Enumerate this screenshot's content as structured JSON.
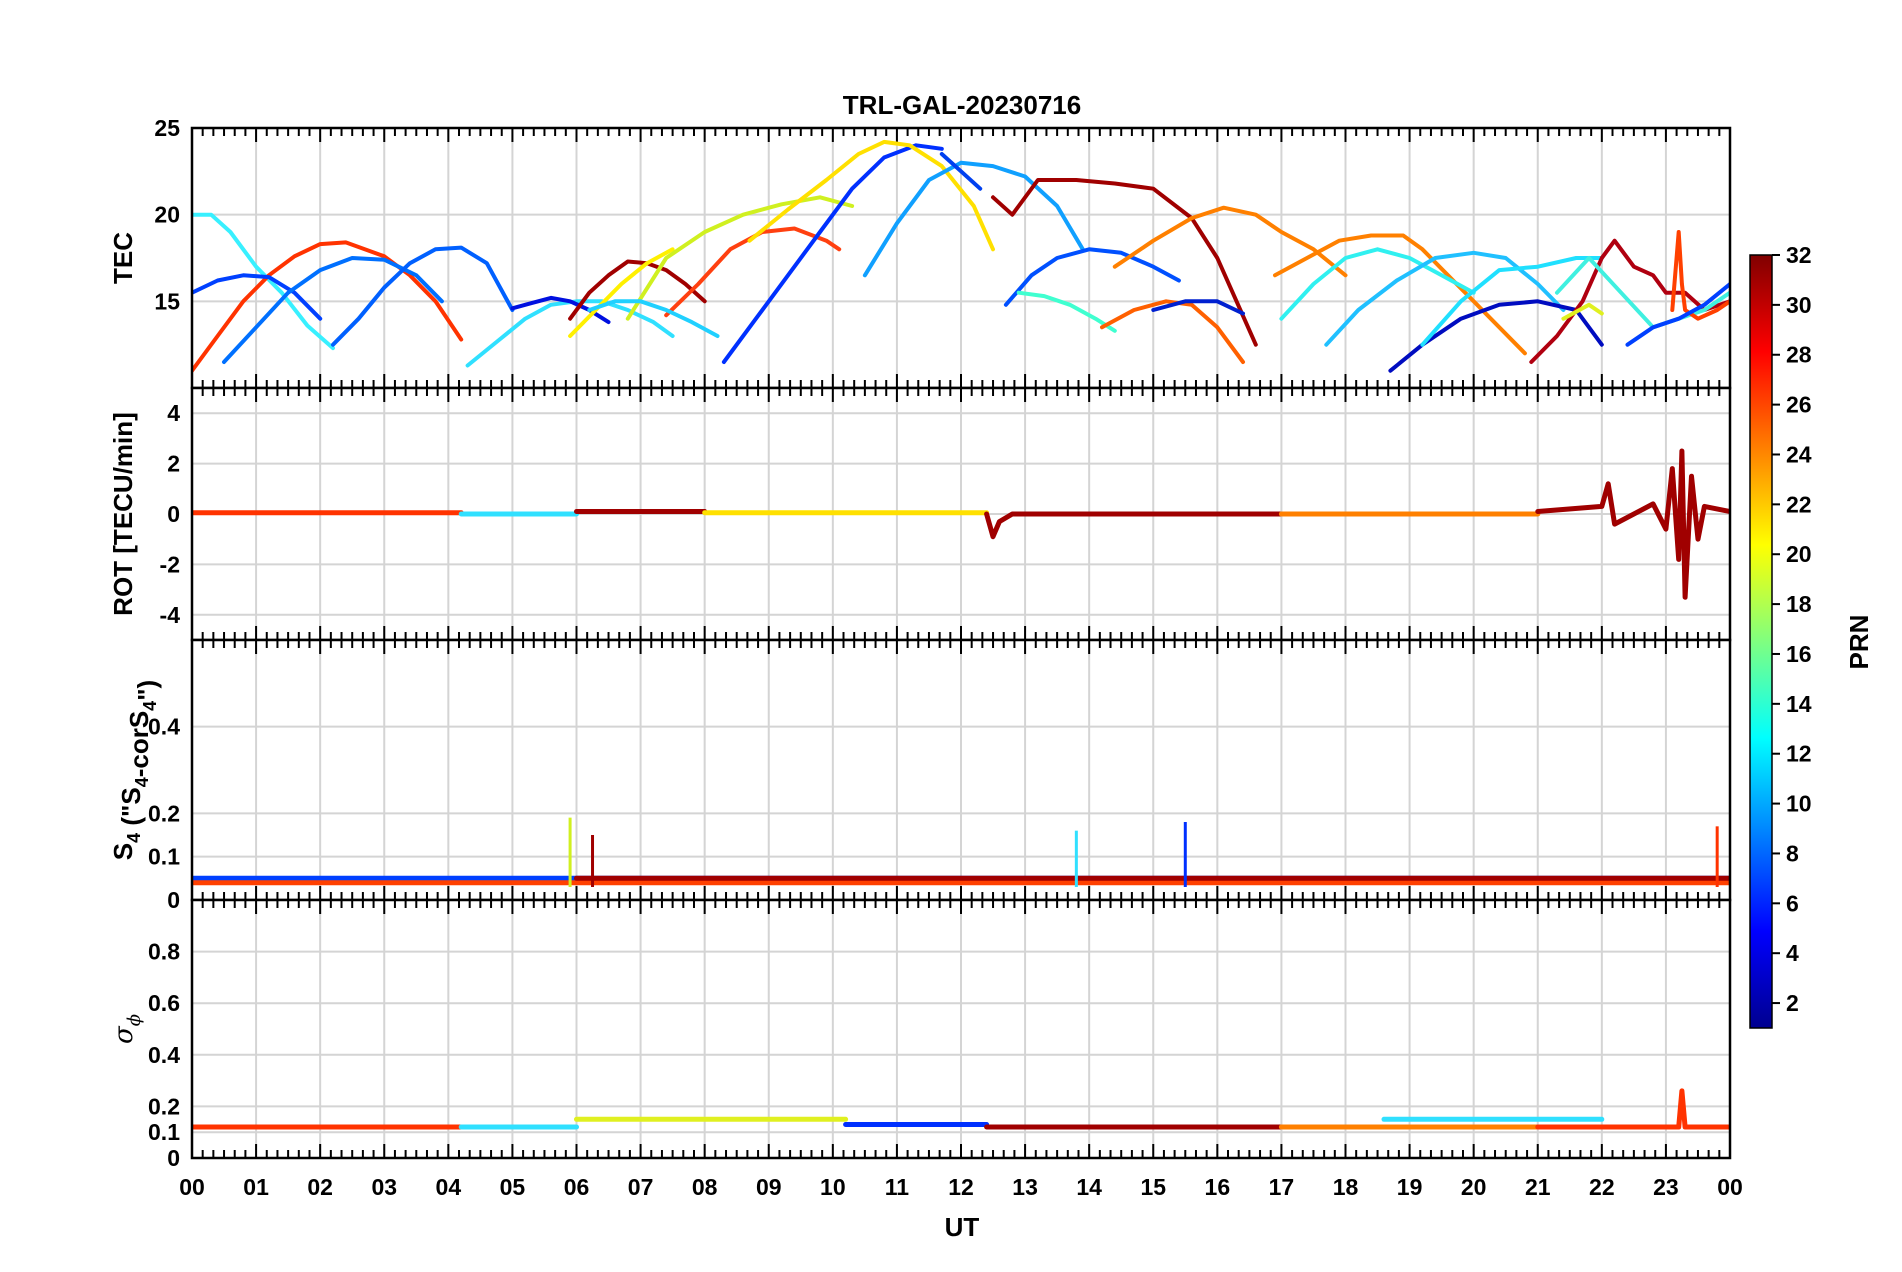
{
  "chart_data": [
    {
      "panel": "tec",
      "type": "line",
      "title": "TRL-GAL-20230716",
      "ylabel": "TEC",
      "ylim": [
        10,
        25
      ],
      "yticks": [
        "15",
        "20",
        "25"
      ],
      "series": [
        {
          "prn": 12,
          "color": "#38f0ff",
          "x": [
            0,
            0.3,
            0.6,
            1.0,
            1.4,
            1.8,
            2.2
          ],
          "y": [
            20.0,
            20.0,
            19.0,
            17.0,
            15.5,
            13.6,
            12.3
          ]
        },
        {
          "prn": 28,
          "color": "#ff3300",
          "x": [
            0,
            0.4,
            0.8,
            1.2,
            1.6,
            2.0,
            2.4,
            3.0,
            3.4,
            3.8,
            4.2
          ],
          "y": [
            11.0,
            13.0,
            15.0,
            16.5,
            17.6,
            18.3,
            18.4,
            17.6,
            16.5,
            15.0,
            12.8
          ]
        },
        {
          "prn": 5,
          "color": "#0040ff",
          "x": [
            0,
            0.4,
            0.8,
            1.2,
            1.6,
            2.0
          ],
          "y": [
            15.5,
            16.2,
            16.5,
            16.4,
            15.5,
            14.0
          ]
        },
        {
          "prn": 8,
          "color": "#0070ff",
          "x": [
            0.5,
            1.0,
            1.5,
            2.0,
            2.5,
            3.0,
            3.5,
            3.9
          ],
          "y": [
            11.5,
            13.5,
            15.5,
            16.8,
            17.5,
            17.4,
            16.5,
            15.0
          ]
        },
        {
          "prn": 8,
          "color": "#0060ff",
          "x": [
            2.2,
            2.6,
            3.0,
            3.4,
            3.8,
            4.2,
            4.6,
            5.0
          ],
          "y": [
            12.5,
            14.0,
            15.8,
            17.2,
            18.0,
            18.1,
            17.2,
            14.5
          ]
        },
        {
          "prn": 12,
          "color": "#30e0ff",
          "x": [
            4.3,
            4.8,
            5.2,
            5.6,
            6.0,
            6.4,
            6.8,
            7.2,
            7.5
          ],
          "y": [
            11.3,
            12.8,
            14.0,
            14.8,
            15.0,
            15.0,
            14.5,
            13.8,
            13.0
          ]
        },
        {
          "prn": 3,
          "color": "#0010e0",
          "x": [
            5.0,
            5.3,
            5.6,
            5.9,
            6.2,
            6.5
          ],
          "y": [
            14.6,
            14.9,
            15.2,
            15.0,
            14.5,
            13.8
          ]
        },
        {
          "prn": 31,
          "color": "#a00000",
          "x": [
            5.9,
            6.2,
            6.5,
            6.8,
            7.1,
            7.4,
            7.7,
            8.0
          ],
          "y": [
            14.0,
            15.5,
            16.5,
            17.3,
            17.2,
            16.8,
            16.0,
            15.0
          ]
        },
        {
          "prn": 20,
          "color": "#fff000",
          "x": [
            5.9,
            6.3,
            6.7,
            7.1,
            7.5
          ],
          "y": [
            13.0,
            14.5,
            16.0,
            17.2,
            18.0
          ]
        },
        {
          "prn": 18,
          "color": "#d0f020",
          "x": [
            6.8,
            7.4,
            8.0,
            8.6,
            9.2,
            9.8,
            10.3
          ],
          "y": [
            14.0,
            17.5,
            19.0,
            20.0,
            20.6,
            21.0,
            20.5
          ]
        },
        {
          "prn": 27,
          "color": "#ff4010",
          "x": [
            7.4,
            7.9,
            8.4,
            8.9,
            9.4,
            9.9,
            10.1
          ],
          "y": [
            14.2,
            16.0,
            18.0,
            19.0,
            19.2,
            18.5,
            18.0
          ]
        },
        {
          "prn": 12,
          "color": "#20d0ff",
          "x": [
            6.2,
            6.6,
            7.0,
            7.4,
            7.8,
            8.2
          ],
          "y": [
            14.5,
            15.0,
            15.0,
            14.5,
            13.8,
            13.0
          ]
        },
        {
          "prn": 4,
          "color": "#0030ff",
          "x": [
            8.3,
            8.8,
            9.3,
            9.8,
            10.3,
            10.8,
            11.3,
            11.7
          ],
          "y": [
            11.5,
            14.0,
            16.5,
            19.0,
            21.5,
            23.3,
            24.0,
            23.8
          ]
        },
        {
          "prn": 21,
          "color": "#ffe000",
          "x": [
            8.7,
            9.3,
            9.9,
            10.4,
            10.8,
            11.2,
            11.7,
            12.2,
            12.5
          ],
          "y": [
            18.5,
            20.3,
            22.0,
            23.5,
            24.2,
            24.0,
            22.8,
            20.5,
            18.0
          ]
        },
        {
          "prn": 10,
          "color": "#10a0ff",
          "x": [
            10.5,
            11.0,
            11.5,
            12.0,
            12.5,
            13.0,
            13.5,
            13.9
          ],
          "y": [
            16.5,
            19.5,
            22.0,
            23.0,
            22.8,
            22.2,
            20.5,
            18.0
          ]
        },
        {
          "prn": 5,
          "color": "#0040f0",
          "x": [
            11.7,
            12.0,
            12.3
          ],
          "y": [
            23.5,
            22.5,
            21.5
          ]
        },
        {
          "prn": 31,
          "color": "#a00000",
          "x": [
            12.5,
            12.8,
            13.2,
            13.8,
            14.4,
            15.0,
            15.6,
            16.0,
            16.6
          ],
          "y": [
            21.0,
            20.0,
            22.0,
            22.0,
            21.8,
            21.5,
            19.8,
            17.5,
            12.5
          ]
        },
        {
          "prn": 6,
          "color": "#0050ff",
          "x": [
            12.7,
            13.1,
            13.5,
            14.0,
            14.5,
            15.0,
            15.4
          ],
          "y": [
            14.8,
            16.5,
            17.5,
            18.0,
            17.8,
            17.0,
            16.2
          ]
        },
        {
          "prn": 14,
          "color": "#40ffd0",
          "x": [
            12.9,
            13.3,
            13.7,
            14.1,
            14.4
          ],
          "y": [
            15.5,
            15.3,
            14.8,
            14.0,
            13.3
          ]
        },
        {
          "prn": 24,
          "color": "#ff8000",
          "x": [
            14.4,
            15.0,
            15.6,
            16.1,
            16.6,
            17.0,
            17.5,
            18.0
          ],
          "y": [
            17.0,
            18.5,
            19.8,
            20.4,
            20.0,
            19.0,
            18.0,
            16.5
          ]
        },
        {
          "prn": 25,
          "color": "#ff6000",
          "x": [
            14.2,
            14.7,
            15.2,
            15.6,
            16.0,
            16.4
          ],
          "y": [
            13.5,
            14.5,
            15.0,
            14.8,
            13.5,
            11.5
          ]
        },
        {
          "prn": 3,
          "color": "#0020d0",
          "x": [
            15.0,
            15.5,
            16.0,
            16.4
          ],
          "y": [
            14.5,
            15.0,
            15.0,
            14.3
          ]
        },
        {
          "prn": 24,
          "color": "#ff8000",
          "x": [
            16.9,
            17.4,
            17.9,
            18.4,
            18.9,
            19.2,
            19.6,
            20.0,
            20.4,
            20.8
          ],
          "y": [
            16.5,
            17.5,
            18.5,
            18.8,
            18.8,
            18.0,
            16.5,
            15.0,
            13.5,
            12.0
          ]
        },
        {
          "prn": 13,
          "color": "#30f0f0",
          "x": [
            17.0,
            17.5,
            18.0,
            18.5,
            19.0,
            19.5,
            20.0
          ],
          "y": [
            14.0,
            16.0,
            17.5,
            18.0,
            17.5,
            16.5,
            15.5
          ]
        },
        {
          "prn": 11,
          "color": "#20c0ff",
          "x": [
            17.7,
            18.2,
            18.8,
            19.4,
            20.0,
            20.5,
            21.0,
            21.4
          ],
          "y": [
            12.5,
            14.5,
            16.2,
            17.5,
            17.8,
            17.5,
            16.0,
            14.5
          ]
        },
        {
          "prn": 2,
          "color": "#000cc0",
          "x": [
            18.7,
            19.2,
            19.8,
            20.4,
            21.0,
            21.6,
            22.0
          ],
          "y": [
            11.0,
            12.5,
            14.0,
            14.8,
            15.0,
            14.5,
            12.5
          ]
        },
        {
          "prn": 12,
          "color": "#20e0ff",
          "x": [
            19.2,
            19.8,
            20.4,
            21.0,
            21.6,
            22.0
          ],
          "y": [
            12.5,
            15.0,
            16.8,
            17.0,
            17.5,
            17.5
          ]
        },
        {
          "prn": 31,
          "color": "#b00010",
          "x": [
            20.9,
            21.3,
            21.7,
            22.0,
            22.2,
            22.5,
            22.8,
            23.0,
            23.3,
            23.6,
            24.0
          ],
          "y": [
            11.5,
            13.0,
            15.0,
            17.5,
            18.5,
            17.0,
            16.5,
            15.5,
            15.5,
            14.5,
            15.0
          ]
        },
        {
          "prn": 18,
          "color": "#e0f020",
          "x": [
            21.4,
            21.8,
            22.0
          ],
          "y": [
            14.0,
            14.8,
            14.3
          ]
        },
        {
          "prn": 14,
          "color": "#40f0e0",
          "x": [
            21.3,
            21.8,
            22.3,
            22.8,
            23.2,
            23.6,
            24.0
          ],
          "y": [
            15.5,
            17.5,
            15.5,
            13.5,
            14.0,
            14.5,
            15.5
          ]
        },
        {
          "prn": 26,
          "color": "#ff4000",
          "x": [
            23.1,
            23.2,
            23.25,
            23.3,
            23.5,
            23.8,
            24.0
          ],
          "y": [
            14.5,
            19.0,
            16.0,
            14.5,
            14.0,
            14.5,
            15.0
          ]
        },
        {
          "prn": 5,
          "color": "#0040ff",
          "x": [
            22.4,
            22.8,
            23.2,
            23.6,
            24.0
          ],
          "y": [
            12.5,
            13.5,
            14.0,
            14.8,
            16.0
          ]
        }
      ]
    },
    {
      "panel": "rot",
      "type": "line",
      "ylabel": "ROT [TECU/min]",
      "ylim": [
        -5,
        5
      ],
      "yticks": [
        "-4",
        "-2",
        "0",
        "2",
        "4"
      ],
      "series": [
        {
          "color": "#ff3300",
          "x": [
            0,
            4.2
          ],
          "y": [
            0.05,
            0.05
          ]
        },
        {
          "color": "#30e0ff",
          "x": [
            4.2,
            6.0
          ],
          "y": [
            0,
            0
          ]
        },
        {
          "color": "#a00000",
          "x": [
            6.0,
            8.0
          ],
          "y": [
            0.1,
            0.1
          ]
        },
        {
          "color": "#ffe000",
          "x": [
            8.0,
            12.4
          ],
          "y": [
            0.05,
            0.05
          ]
        },
        {
          "color": "#a00000",
          "x": [
            12.4,
            12.5,
            12.6,
            12.8,
            17.0
          ],
          "y": [
            0,
            -0.9,
            -0.3,
            0,
            0
          ]
        },
        {
          "color": "#ff8000",
          "x": [
            17.0,
            21.0
          ],
          "y": [
            0,
            0
          ]
        },
        {
          "color": "#a00000",
          "x": [
            21.0,
            22.0,
            22.1,
            22.2,
            22.8,
            23.0,
            23.1,
            23.2,
            23.25,
            23.3,
            23.4,
            23.5,
            23.6,
            24.0
          ],
          "y": [
            0.1,
            0.3,
            1.2,
            -0.4,
            0.4,
            -0.6,
            1.8,
            -1.8,
            2.5,
            -3.3,
            1.5,
            -1.0,
            0.3,
            0.1
          ]
        }
      ]
    },
    {
      "panel": "s4",
      "type": "line",
      "ylabel_main": "S",
      "ylabel_sub": "4",
      "ylabel_rest": " (\"S",
      "ylabel_sub2": "4",
      "ylabel_rest2": "-corS",
      "ylabel_sub3": "4",
      "ylabel_end": "\")",
      "ylim": [
        0,
        0.6
      ],
      "yticks": [
        "0",
        "0.1",
        "0.2",
        "0.4"
      ],
      "series": [
        {
          "color": "#0040ff",
          "x": [
            0,
            24
          ],
          "y": [
            0.05,
            0.05
          ]
        },
        {
          "color": "#ff4000",
          "x": [
            0,
            24
          ],
          "y": [
            0.04,
            0.04
          ]
        },
        {
          "color": "#a00000",
          "x": [
            6,
            24
          ],
          "y": [
            0.05,
            0.05
          ]
        }
      ],
      "spikes": [
        {
          "color": "#d0f020",
          "x": 5.9,
          "y": 0.19
        },
        {
          "color": "#0030ff",
          "x": 15.5,
          "y": 0.18
        },
        {
          "color": "#ff3300",
          "x": 23.8,
          "y": 0.17
        },
        {
          "color": "#a00000",
          "x": 6.25,
          "y": 0.15
        },
        {
          "color": "#30e0ff",
          "x": 13.8,
          "y": 0.16
        }
      ]
    },
    {
      "panel": "sigma",
      "type": "line",
      "ylabel": "σ",
      "ylabel_sub": "ϕ",
      "ylim": [
        0,
        1
      ],
      "yticks": [
        "0",
        "0.1",
        "0.2",
        "0.4",
        "0.6",
        "0.8"
      ],
      "xlabel": "UT",
      "xticks": [
        "00",
        "01",
        "02",
        "03",
        "04",
        "05",
        "06",
        "07",
        "08",
        "09",
        "10",
        "11",
        "12",
        "13",
        "14",
        "15",
        "16",
        "17",
        "18",
        "19",
        "20",
        "21",
        "22",
        "23",
        "00"
      ],
      "series": [
        {
          "color": "#ff3300",
          "x": [
            0,
            4.2
          ],
          "y": [
            0.12,
            0.12
          ]
        },
        {
          "color": "#30e0ff",
          "x": [
            4.2,
            6.0
          ],
          "y": [
            0.12,
            0.12
          ]
        },
        {
          "color": "#e0f020",
          "x": [
            6.0,
            10.2
          ],
          "y": [
            0.15,
            0.15
          ]
        },
        {
          "color": "#0030ff",
          "x": [
            10.2,
            12.4
          ],
          "y": [
            0.13,
            0.13
          ]
        },
        {
          "color": "#a00000",
          "x": [
            12.4,
            17.0
          ],
          "y": [
            0.12,
            0.12
          ]
        },
        {
          "color": "#ff8000",
          "x": [
            17.0,
            21.0
          ],
          "y": [
            0.12,
            0.12
          ]
        },
        {
          "color": "#30e0ff",
          "x": [
            18.6,
            22.0
          ],
          "y": [
            0.15,
            0.15
          ]
        },
        {
          "color": "#ff3300",
          "x": [
            21.0,
            23.2,
            23.25,
            23.3,
            23.4,
            24.0
          ],
          "y": [
            0.12,
            0.12,
            0.26,
            0.12,
            0.12,
            0.12
          ]
        }
      ]
    }
  ],
  "colorbar": {
    "label": "PRN",
    "min": 1,
    "max": 32,
    "ticks": [
      "2",
      "4",
      "6",
      "8",
      "10",
      "12",
      "14",
      "16",
      "18",
      "20",
      "22",
      "24",
      "26",
      "28",
      "30",
      "32"
    ]
  }
}
